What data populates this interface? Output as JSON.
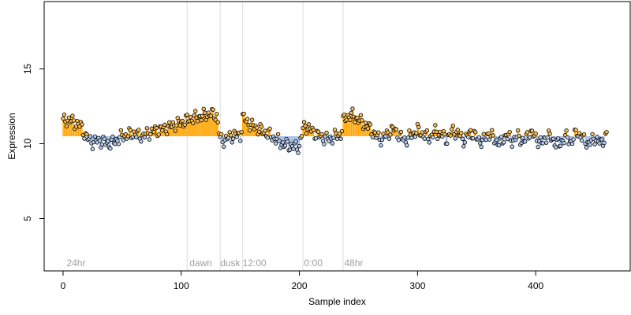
{
  "chart_data": {
    "type": "scatter",
    "xlabel": "Sample index",
    "ylabel": "Expression",
    "xlim": [
      -16,
      480
    ],
    "ylim": [
      1.5,
      19.5
    ],
    "x_ticks": [
      0,
      100,
      200,
      300,
      400
    ],
    "y_ticks": [
      5,
      10,
      15
    ],
    "grid": false,
    "vertical_markers": [
      105,
      133,
      152,
      203,
      237
    ],
    "period_labels": [
      {
        "x": 3,
        "label": "24hr"
      },
      {
        "x": 107,
        "label": "dawn"
      },
      {
        "x": 133,
        "label": "dusk"
      },
      {
        "x": 152,
        "label": "12:00"
      },
      {
        "x": 204,
        "label": "0:00"
      },
      {
        "x": 238,
        "label": "48hr"
      }
    ],
    "colors": {
      "point_high": "#ffbf4d",
      "point_low": "#b8cef0",
      "segment_high": "#ffa500",
      "segment_low": "#9fb6e2",
      "marker_line": "#dcdcdc",
      "period_label": "#a0a0a0"
    },
    "series": [
      {
        "x": [
          0,
          5,
          10,
          15,
          20,
          25,
          30,
          35,
          40,
          45,
          50,
          55,
          60,
          65,
          70,
          75,
          80,
          85,
          90,
          95,
          100,
          105,
          110,
          115,
          120,
          125,
          130,
          133,
          135,
          140,
          145,
          150,
          152,
          155,
          160,
          165,
          170,
          175,
          180,
          185,
          190,
          195,
          200,
          203,
          205,
          210,
          215,
          220,
          225,
          230,
          235,
          237,
          240,
          245,
          250,
          255,
          260,
          265,
          270,
          275,
          280,
          285,
          290,
          295,
          300,
          305,
          310,
          315,
          320,
          325,
          330,
          335,
          340,
          345,
          350,
          355,
          360,
          365,
          370,
          375,
          380,
          385,
          390,
          395,
          400,
          405,
          410,
          415,
          420,
          425,
          430,
          435,
          440,
          445,
          450,
          455,
          460
        ],
        "values": [
          11.5,
          11.6,
          11.4,
          11.2,
          10.4,
          10.1,
          10.2,
          10.1,
          10.0,
          10.2,
          10.5,
          10.6,
          10.7,
          10.5,
          10.6,
          10.8,
          10.9,
          11.0,
          11.1,
          11.3,
          11.4,
          11.6,
          11.7,
          11.8,
          11.9,
          12.0,
          11.9,
          10.3,
          10.2,
          10.4,
          10.6,
          10.5,
          11.8,
          11.5,
          11.2,
          11.0,
          10.8,
          10.6,
          10.3,
          10.0,
          9.9,
          9.8,
          9.8,
          11.0,
          11.2,
          10.9,
          10.6,
          10.4,
          10.3,
          10.5,
          10.6,
          11.5,
          11.8,
          11.9,
          11.6,
          11.3,
          11.0,
          10.5,
          10.3,
          10.7,
          11.0,
          10.5,
          10.2,
          10.6,
          10.9,
          10.6,
          10.4,
          10.8,
          10.6,
          10.3,
          10.9,
          10.6,
          10.2,
          10.8,
          10.4,
          10.1,
          10.7,
          10.3,
          10.0,
          10.6,
          10.2,
          10.5,
          10.1,
          10.8,
          10.4,
          10.0,
          10.6,
          10.2,
          9.9,
          10.5,
          10.1,
          10.8,
          10.3,
          10.0,
          10.4,
          10.0,
          10.6
        ]
      }
    ]
  }
}
